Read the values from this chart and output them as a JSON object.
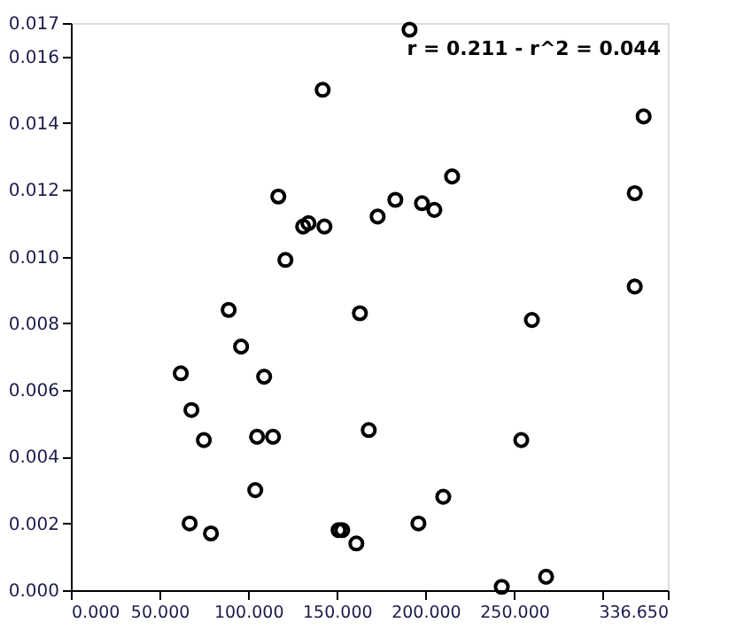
{
  "chart_data": {
    "type": "scatter",
    "marker": "circle",
    "grid": false,
    "annotations": [
      "r = 0.211 - r^2 = 0.044"
    ],
    "xlim": [
      0,
      336.65
    ],
    "xticks": [
      {
        "value": 0,
        "label": "0.000"
      },
      {
        "value": 50,
        "label": "50.000"
      },
      {
        "value": 100,
        "label": "100.000"
      },
      {
        "value": 150,
        "label": "150.000"
      },
      {
        "value": 200,
        "label": "200.000"
      },
      {
        "value": 250,
        "label": "250.000"
      },
      {
        "value": 300,
        "label": null
      },
      {
        "value": 336.65,
        "label": "336.650"
      }
    ],
    "ylim": [
      0,
      0.017
    ],
    "yticks": [
      {
        "value": 0,
        "label": "0.000"
      },
      {
        "value": 0.002,
        "label": "0.002"
      },
      {
        "value": 0.004,
        "label": "0.004"
      },
      {
        "value": 0.006,
        "label": "0.006"
      },
      {
        "value": 0.008,
        "label": "0.008"
      },
      {
        "value": 0.01,
        "label": "0.010"
      },
      {
        "value": 0.012,
        "label": "0.012"
      },
      {
        "value": 0.014,
        "label": "0.014"
      },
      {
        "value": 0.016,
        "label": "0.016"
      },
      {
        "value": 0.017,
        "label": "0.017"
      }
    ],
    "series": [
      {
        "color": "#000000",
        "x": [
          191,
          142,
          323,
          117,
          131,
          134,
          143,
          121,
          89,
          215,
          183,
          173,
          198,
          205,
          318,
          318,
          163,
          260,
          62,
          96,
          109,
          68,
          75,
          105,
          114,
          104,
          67,
          79,
          151,
          168,
          254,
          210,
          196,
          153,
          161,
          268,
          243
        ],
        "values": [
          0.0168,
          0.015,
          0.0142,
          0.0118,
          0.0109,
          0.011,
          0.0109,
          0.0099,
          0.0084,
          0.0124,
          0.0117,
          0.0112,
          0.0116,
          0.0114,
          0.0119,
          0.0091,
          0.0083,
          0.0081,
          0.0065,
          0.0073,
          0.0064,
          0.0054,
          0.0045,
          0.0046,
          0.0046,
          0.003,
          0.002,
          0.0017,
          0.0018,
          0.0048,
          0.0045,
          0.0028,
          0.002,
          0.0018,
          0.0014,
          0.0004,
          0.0001
        ]
      }
    ]
  }
}
